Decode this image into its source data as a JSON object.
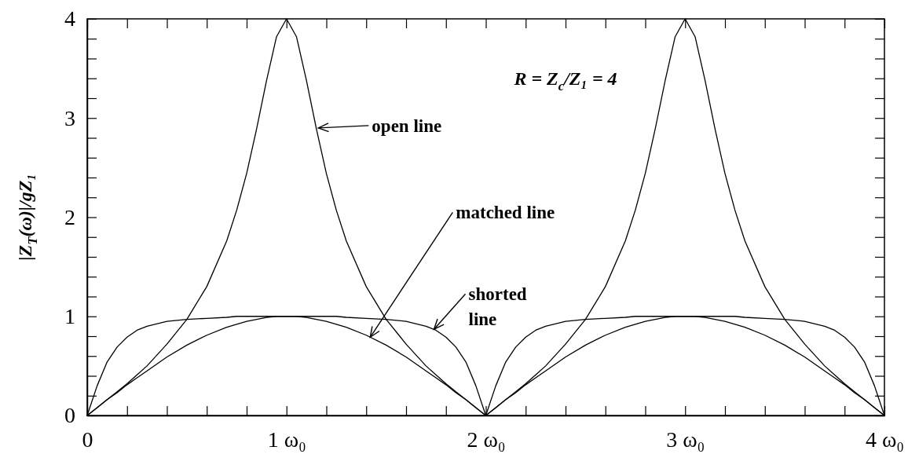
{
  "chart_data": {
    "type": "line",
    "ylabel": "|Z$_{T}$(ω)|/gZ₁",
    "annotations": [
      "R = Z$_{c}$/Z₁ = 4",
      {
        "text": "open line",
        "x": 1.16,
        "y": 2.9
      },
      {
        "text": "matched line",
        "x": 1.42,
        "y": 0.79
      },
      {
        "text": "shorted line",
        "x": 1.74,
        "y": 0.87
      }
    ],
    "xlim": [
      0,
      4
    ],
    "ylim": [
      0,
      4
    ],
    "xticks": [
      {
        "value": 0,
        "label": "0"
      },
      {
        "value": 0.2,
        "label": null
      },
      {
        "value": 0.4,
        "label": null
      },
      {
        "value": 0.6,
        "label": null
      },
      {
        "value": 0.8,
        "label": null
      },
      {
        "value": 1,
        "label": "1 ω₀"
      },
      {
        "value": 1.2,
        "label": null
      },
      {
        "value": 1.4,
        "label": null
      },
      {
        "value": 1.6,
        "label": null
      },
      {
        "value": 1.8,
        "label": null
      },
      {
        "value": 2,
        "label": "2 ω₀"
      },
      {
        "value": 2.2,
        "label": null
      },
      {
        "value": 2.4,
        "label": null
      },
      {
        "value": 2.6,
        "label": null
      },
      {
        "value": 2.8,
        "label": null
      },
      {
        "value": 3,
        "label": "3 ω₀"
      },
      {
        "value": 3.2,
        "label": null
      },
      {
        "value": 3.4,
        "label": null
      },
      {
        "value": 3.6,
        "label": null
      },
      {
        "value": 3.8,
        "label": null
      },
      {
        "value": 4,
        "label": "4 ω₀"
      }
    ],
    "yticks": [
      0,
      {
        "value": 0.2,
        "label": null
      },
      {
        "value": 0.4,
        "label": null
      },
      {
        "value": 0.6,
        "label": null
      },
      {
        "value": 0.8,
        "label": null
      },
      1,
      {
        "value": 1.2,
        "label": null
      },
      {
        "value": 1.4,
        "label": null
      },
      {
        "value": 1.6,
        "label": null
      },
      {
        "value": 1.8,
        "label": null
      },
      2,
      {
        "value": 2.2,
        "label": null
      },
      {
        "value": 2.4,
        "label": null
      },
      {
        "value": 2.6,
        "label": null
      },
      {
        "value": 2.8,
        "label": null
      },
      3,
      {
        "value": 3.2,
        "label": null
      },
      {
        "value": 3.4,
        "label": null
      },
      {
        "value": 3.6,
        "label": null
      },
      {
        "value": 3.8,
        "label": null
      },
      4
    ],
    "x": [
      0,
      0.05,
      0.1,
      0.15,
      0.2,
      0.25,
      0.3,
      0.4,
      0.5,
      0.6,
      0.7,
      0.75,
      0.8,
      0.85,
      0.9,
      0.95,
      1,
      1.05,
      1.1,
      1.15,
      1.2,
      1.25,
      1.3,
      1.4,
      1.5,
      1.6,
      1.7,
      1.75,
      1.8,
      1.85,
      1.9,
      1.95,
      2,
      2.05,
      2.1,
      2.15,
      2.2,
      2.25,
      2.3,
      2.4,
      2.5,
      2.6,
      2.7,
      2.75,
      2.8,
      2.85,
      2.9,
      2.95,
      3,
      3.05,
      3.1,
      3.15,
      3.2,
      3.25,
      3.3,
      3.4,
      3.5,
      3.6,
      3.7,
      3.75,
      3.8,
      3.85,
      3.9,
      3.95,
      4
    ],
    "series": [
      {
        "color": "#000000",
        "values": [
          0,
          0.08,
          0.16,
          0.24,
          0.32,
          0.41,
          0.5,
          0.72,
          0.97,
          1.3,
          1.76,
          2.07,
          2.44,
          2.89,
          3.38,
          3.82,
          4,
          3.82,
          3.38,
          2.89,
          2.44,
          2.07,
          1.76,
          1.3,
          0.97,
          0.72,
          0.5,
          0.41,
          0.32,
          0.24,
          0.16,
          0.08,
          0,
          0.08,
          0.16,
          0.24,
          0.32,
          0.41,
          0.5,
          0.72,
          0.97,
          1.3,
          1.76,
          2.07,
          2.44,
          2.89,
          3.38,
          3.82,
          4,
          3.82,
          3.38,
          2.89,
          2.44,
          2.07,
          1.76,
          1.3,
          0.97,
          0.72,
          0.5,
          0.41,
          0.32,
          0.24,
          0.16,
          0.08,
          0
        ]
      },
      {
        "color": "#000000",
        "values": [
          0,
          0.08,
          0.16,
          0.23,
          0.31,
          0.38,
          0.45,
          0.59,
          0.71,
          0.81,
          0.89,
          0.92,
          0.95,
          0.97,
          0.99,
          1,
          1,
          1,
          0.99,
          0.97,
          0.95,
          0.92,
          0.89,
          0.81,
          0.71,
          0.59,
          0.45,
          0.38,
          0.31,
          0.23,
          0.16,
          0.08,
          0,
          0.08,
          0.16,
          0.23,
          0.31,
          0.38,
          0.45,
          0.59,
          0.71,
          0.81,
          0.89,
          0.92,
          0.95,
          0.97,
          0.99,
          1,
          1,
          1,
          0.99,
          0.97,
          0.95,
          0.92,
          0.89,
          0.81,
          0.71,
          0.59,
          0.45,
          0.38,
          0.31,
          0.23,
          0.16,
          0.08,
          0
        ]
      },
      {
        "color": "#000000",
        "values": [
          0,
          0.3,
          0.54,
          0.69,
          0.79,
          0.86,
          0.9,
          0.95,
          0.97,
          0.98,
          0.99,
          1,
          1,
          1,
          1,
          1,
          1,
          1,
          1,
          1,
          1,
          1,
          0.99,
          0.98,
          0.97,
          0.95,
          0.9,
          0.86,
          0.79,
          0.69,
          0.54,
          0.3,
          0,
          0.3,
          0.54,
          0.69,
          0.79,
          0.86,
          0.9,
          0.95,
          0.97,
          0.98,
          0.99,
          1,
          1,
          1,
          1,
          1,
          1,
          1,
          1,
          1,
          1,
          1,
          0.99,
          0.98,
          0.97,
          0.95,
          0.9,
          0.86,
          0.79,
          0.69,
          0.54,
          0.3,
          0
        ]
      }
    ]
  }
}
